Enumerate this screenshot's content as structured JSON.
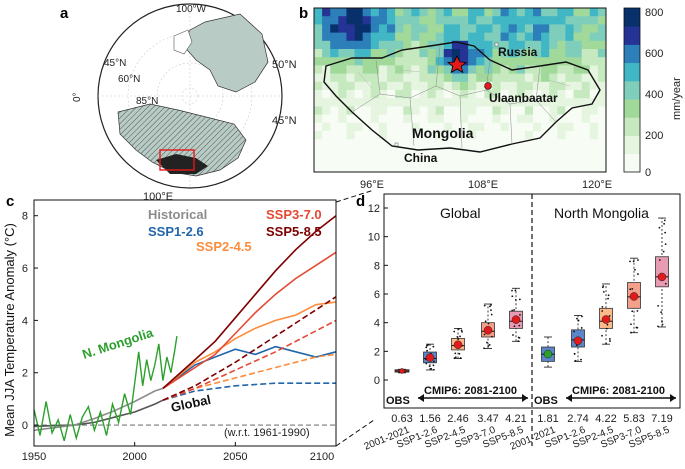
{
  "panel_a": {
    "label": "a",
    "lat_labels": [
      "45°N",
      "60°N",
      "85°N"
    ],
    "lon_labels": [
      "100°W",
      "0°",
      "100°E"
    ]
  },
  "panel_b": {
    "label": "b",
    "lat_ticks": [
      "50°N",
      "45°N"
    ],
    "lon_ticks": [
      "96°E",
      "108°E",
      "120°E"
    ],
    "places": [
      "Russia",
      "Ulaanbaatar",
      "Mongolia",
      "China"
    ],
    "colorbar": {
      "ticks": [
        "800",
        "600",
        "400",
        "200",
        "0"
      ],
      "unit": "mm/year",
      "colors": [
        "#f7fcf5",
        "#e5f5e0",
        "#c7e9c0",
        "#a1d99b",
        "#7fcdbb",
        "#41b6c4",
        "#2c7fb8",
        "#253494",
        "#08306b"
      ]
    }
  },
  "panel_c": {
    "label": "c",
    "ylabel": "Mean JJA Temperature Anomaly (°C)",
    "xticks": [
      "1950",
      "2000",
      "2050",
      "2100"
    ],
    "yticks": [
      "0",
      "2",
      "4",
      "6",
      "8"
    ],
    "legend": [
      {
        "name": "Historical",
        "color": "#8c8c8c"
      },
      {
        "name": "SSP3-7.0",
        "color": "#e34a33"
      },
      {
        "name": "SSP1-2.6",
        "color": "#2166ac"
      },
      {
        "name": "SSP5-8.5",
        "color": "#7f0000"
      },
      {
        "name": "SSP2-4.5",
        "color": "#fd8d3c"
      }
    ],
    "annotations": {
      "mongolia": "N. Mongolia",
      "global": "Global",
      "ref": "(w.r.t. 1961-1990)"
    },
    "colors": {
      "obs": "#2ca02c",
      "historical": "#555555"
    }
  },
  "panel_d": {
    "label": "d",
    "groups": [
      "Global",
      "North Mongolia"
    ],
    "cmip_label": "CMIP6: 2081-2100",
    "obs_label": "OBS",
    "yticks": [
      "0",
      "2",
      "4",
      "6",
      "8",
      "10",
      "12"
    ],
    "categories": [
      "2001-2021",
      "SSP1-2.6",
      "SSP2-4.5",
      "SSP3-7.0",
      "SSP5-8.5",
      "2001-2021",
      "SSP1-2.6",
      "SSP2-4.5",
      "SSP3-7.0",
      "SSP5-8.5"
    ],
    "values": [
      "0.63",
      "1.56",
      "2.46",
      "3.47",
      "4.21",
      "1.81",
      "2.74",
      "4.22",
      "5.83",
      "7.19"
    ]
  },
  "chart_data": [
    {
      "type": "line",
      "title": "c",
      "xlabel": "",
      "ylabel": "Mean JJA Temperature Anomaly (°C)",
      "xlim": [
        1950,
        2100
      ],
      "ylim": [
        -0.8,
        8.6
      ],
      "series": [
        {
          "name": "Historical (Global)",
          "color": "#555555",
          "dash": "",
          "x": [
            1950,
            1960,
            1970,
            1980,
            1990,
            2000,
            2010,
            2014
          ],
          "y": [
            -0.05,
            -0.02,
            0.0,
            0.1,
            0.3,
            0.5,
            0.8,
            0.95
          ]
        },
        {
          "name": "Historical (N. Mongolia)",
          "color": "#8c8c8c",
          "dash": "",
          "x": [
            1950,
            1960,
            1970,
            1980,
            1990,
            2000,
            2010,
            2014
          ],
          "y": [
            -0.2,
            -0.1,
            0.0,
            0.25,
            0.55,
            0.9,
            1.3,
            1.4
          ]
        },
        {
          "name": "N. Mongolia OBS",
          "color": "#2ca02c",
          "dash": "",
          "x": [
            1950,
            1953,
            1956,
            1959,
            1962,
            1965,
            1968,
            1971,
            1974,
            1977,
            1980,
            1983,
            1986,
            1989,
            1992,
            1995,
            1998,
            2000,
            2002,
            2004,
            2006,
            2008,
            2010,
            2012,
            2014,
            2016,
            2018,
            2020,
            2021
          ],
          "y": [
            0.6,
            -0.4,
            0.9,
            -0.3,
            0.2,
            -0.6,
            0.4,
            -0.5,
            0.3,
            0.7,
            -0.2,
            0.5,
            -0.4,
            0.8,
            0.1,
            1.2,
            0.4,
            1.6,
            2.8,
            1.5,
            2.5,
            1.7,
            2.3,
            3.1,
            1.7,
            2.6,
            2.0,
            2.9,
            3.4
          ]
        },
        {
          "name": "SSP1-2.6 N. Mongolia",
          "color": "#2166ac",
          "dash": "",
          "x": [
            2014,
            2030,
            2040,
            2050,
            2060,
            2070,
            2080,
            2090,
            2100
          ],
          "y": [
            1.4,
            2.3,
            2.6,
            2.9,
            2.7,
            3.0,
            2.8,
            2.6,
            2.8
          ]
        },
        {
          "name": "SSP2-4.5 N. Mongolia",
          "color": "#fd8d3c",
          "dash": "",
          "x": [
            2014,
            2030,
            2040,
            2050,
            2060,
            2070,
            2080,
            2090,
            2100
          ],
          "y": [
            1.4,
            2.4,
            2.8,
            3.3,
            3.7,
            4.0,
            4.2,
            4.6,
            4.7
          ]
        },
        {
          "name": "SSP3-7.0 N. Mongolia",
          "color": "#e34a33",
          "dash": "",
          "x": [
            2014,
            2030,
            2040,
            2050,
            2060,
            2070,
            2080,
            2090,
            2100
          ],
          "y": [
            1.4,
            2.2,
            2.7,
            3.5,
            4.3,
            5.0,
            5.6,
            6.1,
            6.6
          ]
        },
        {
          "name": "SSP5-8.5 N. Mongolia",
          "color": "#7f0000",
          "dash": "",
          "x": [
            2014,
            2030,
            2040,
            2050,
            2060,
            2070,
            2080,
            2090,
            2100
          ],
          "y": [
            1.4,
            2.5,
            3.2,
            4.1,
            5.0,
            5.9,
            6.7,
            7.4,
            8.0
          ]
        },
        {
          "name": "SSP1-2.6 Global",
          "color": "#2166ac",
          "dash": "6,3",
          "x": [
            2014,
            2030,
            2050,
            2070,
            2090,
            2100
          ],
          "y": [
            0.95,
            1.3,
            1.5,
            1.6,
            1.6,
            1.6
          ]
        },
        {
          "name": "SSP2-4.5 Global",
          "color": "#fd8d3c",
          "dash": "6,3",
          "x": [
            2014,
            2030,
            2050,
            2070,
            2090,
            2100
          ],
          "y": [
            0.95,
            1.4,
            1.8,
            2.2,
            2.6,
            2.7
          ]
        },
        {
          "name": "SSP3-7.0 Global",
          "color": "#e34a33",
          "dash": "6,3",
          "x": [
            2014,
            2030,
            2050,
            2070,
            2090,
            2100
          ],
          "y": [
            0.95,
            1.4,
            2.1,
            2.8,
            3.6,
            4.0
          ]
        },
        {
          "name": "SSP5-8.5 Global",
          "color": "#7f0000",
          "dash": "6,3",
          "x": [
            2014,
            2030,
            2050,
            2070,
            2090,
            2100
          ],
          "y": [
            0.95,
            1.5,
            2.4,
            3.4,
            4.4,
            4.9
          ]
        }
      ]
    },
    {
      "type": "box",
      "title": "d",
      "ylim": [
        0,
        12
      ],
      "categories": [
        "2001-2021",
        "SSP1-2.6",
        "SSP2-4.5",
        "SSP3-7.0",
        "SSP5-8.5",
        "2001-2021",
        "SSP1-2.6",
        "SSP2-4.5",
        "SSP3-7.0",
        "SSP5-8.5"
      ],
      "means": [
        0.63,
        1.56,
        2.46,
        3.47,
        4.21,
        1.81,
        2.74,
        4.22,
        5.83,
        7.19
      ],
      "boxes": [
        {
          "q1": 0.55,
          "median": 0.63,
          "q3": 0.72,
          "min": 0.5,
          "max": 0.75,
          "color": "#e34a33"
        },
        {
          "q1": 1.2,
          "median": 1.5,
          "q3": 1.95,
          "min": 0.7,
          "max": 2.5,
          "color": "#5b86c8"
        },
        {
          "q1": 2.1,
          "median": 2.4,
          "q3": 2.9,
          "min": 1.5,
          "max": 3.6,
          "color": "#fdb98a"
        },
        {
          "q1": 3.0,
          "median": 3.4,
          "q3": 4.0,
          "min": 2.2,
          "max": 5.3,
          "color": "#f4a08a"
        },
        {
          "q1": 3.6,
          "median": 4.1,
          "q3": 4.8,
          "min": 2.7,
          "max": 6.4,
          "color": "#e89cb4"
        },
        {
          "q1": 1.3,
          "median": 1.8,
          "q3": 2.3,
          "min": 0.9,
          "max": 3.0,
          "color": "#5b86c8"
        },
        {
          "q1": 2.3,
          "median": 2.8,
          "q3": 3.5,
          "min": 1.3,
          "max": 4.5,
          "color": "#5b86c8"
        },
        {
          "q1": 3.6,
          "median": 4.1,
          "q3": 5.0,
          "min": 2.5,
          "max": 6.7,
          "color": "#fdb98a"
        },
        {
          "q1": 5.0,
          "median": 5.8,
          "q3": 6.8,
          "min": 3.3,
          "max": 8.5,
          "color": "#f4a08a"
        },
        {
          "q1": 6.5,
          "median": 7.2,
          "q3": 8.6,
          "min": 3.7,
          "max": 11.3,
          "color": "#e89cb4"
        }
      ]
    }
  ]
}
